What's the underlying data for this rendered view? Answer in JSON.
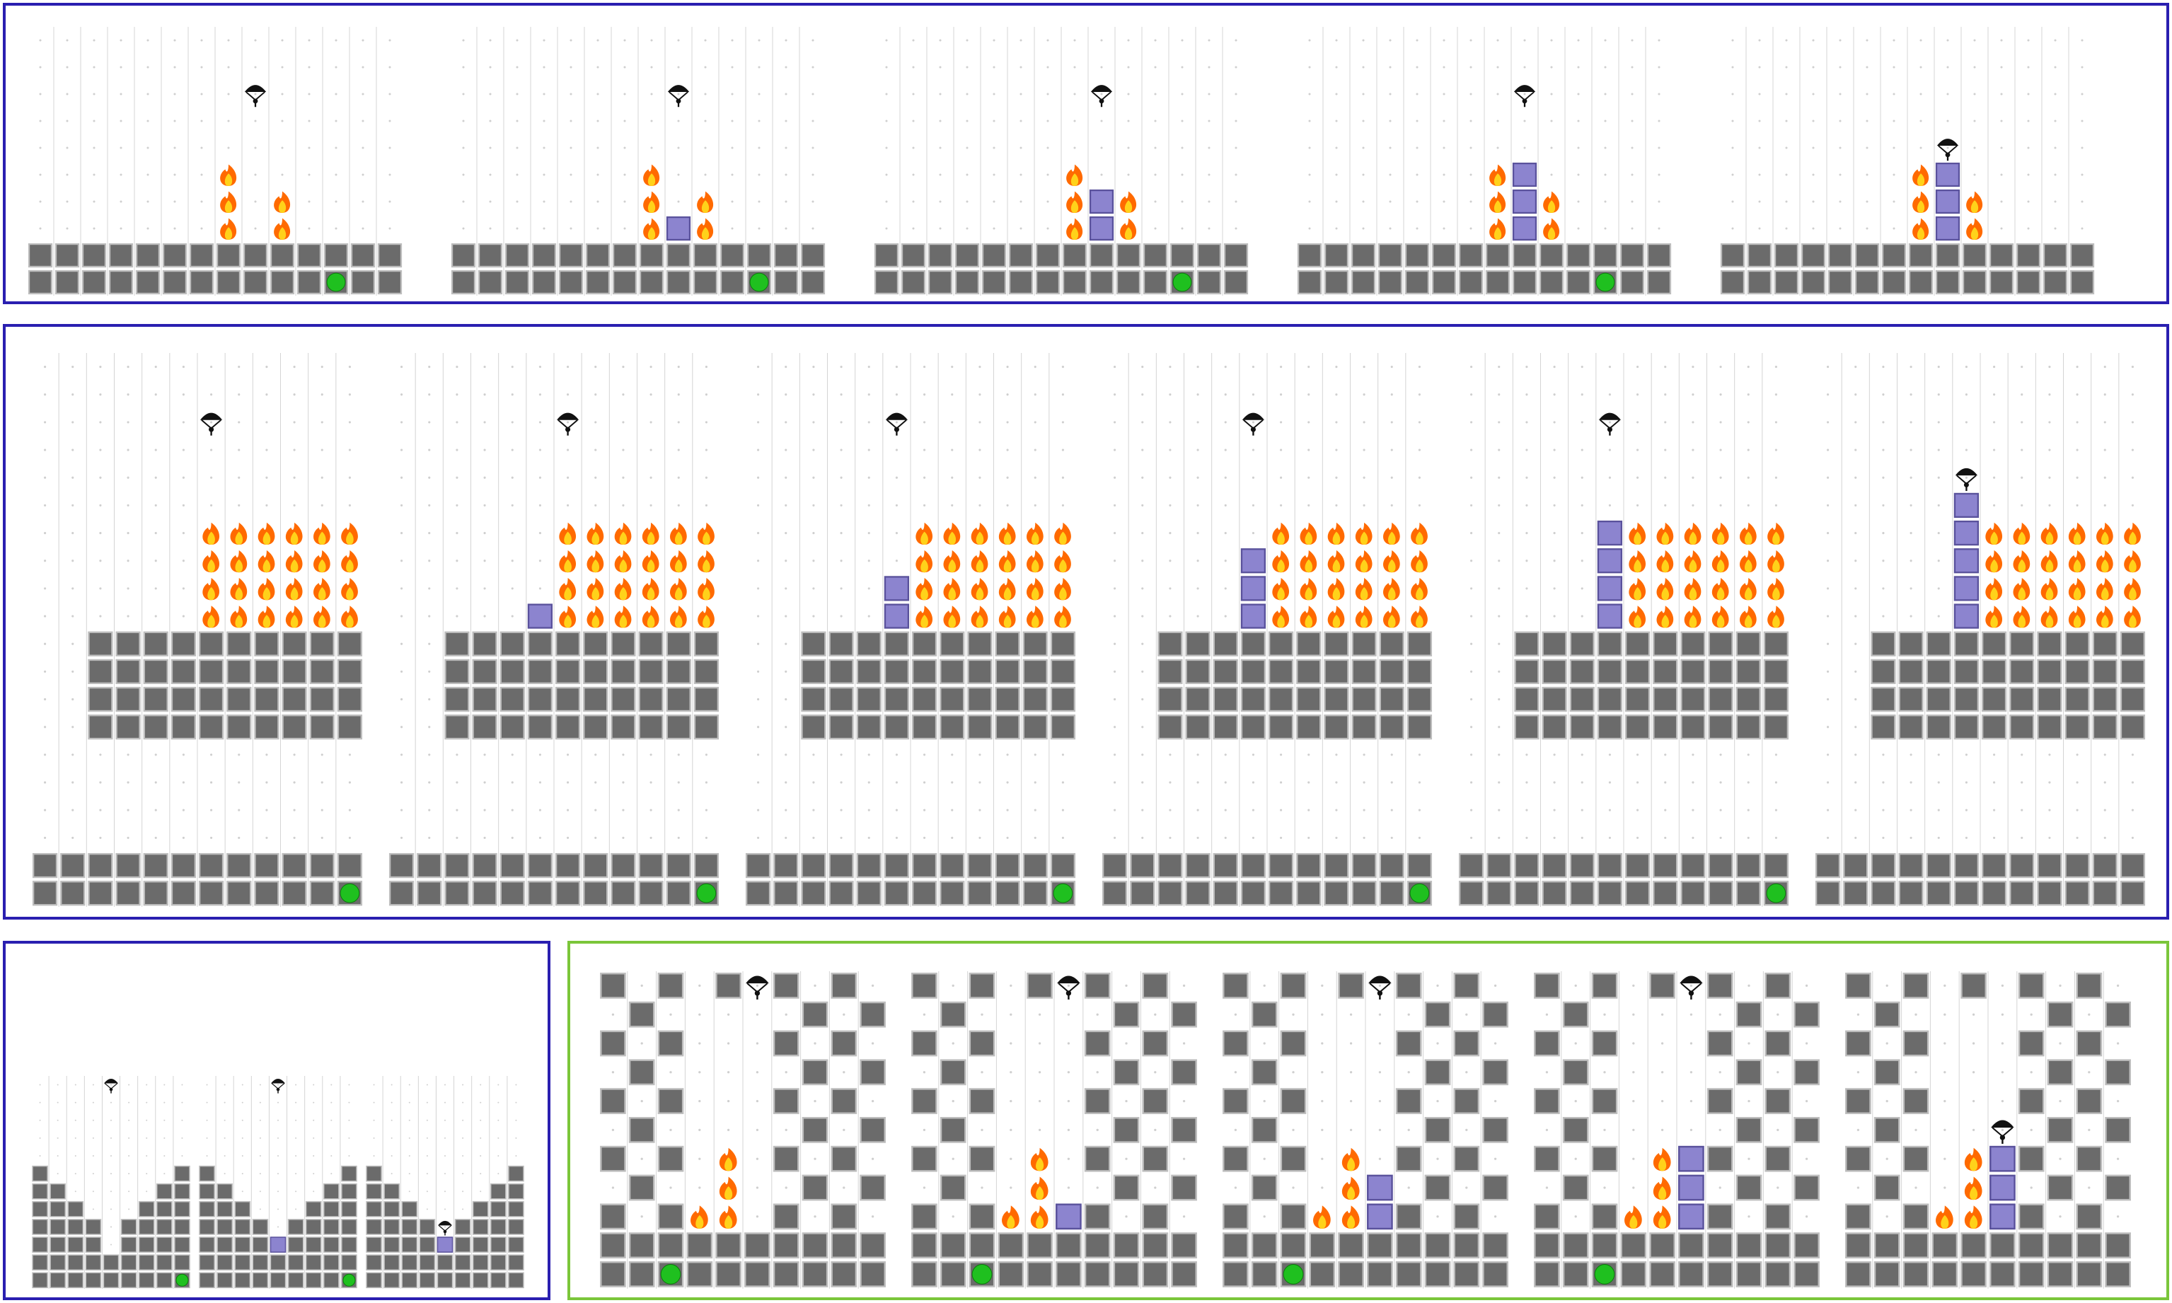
{
  "colors": {
    "group_border_blue": "#2a1fb0",
    "group_border_green": "#7bc63a",
    "wall": "#6b6b6b",
    "wall_edge": "#bdbdbd",
    "ice_block": "#8c84cf",
    "ice_edge": "#5a529c",
    "goal": "#1fc01f",
    "grid_line": "#d4d4d4",
    "grid_dot": "#cfcfcf",
    "flame_outer": "#ff6a00",
    "flame_inner": "#ffd21a",
    "agent": "#111111"
  },
  "icons": {
    "agent": "parachute-agent-icon",
    "fire": "fire-icon",
    "goal": "goal-icon",
    "ice": "ice-block-icon",
    "wall": "wall-icon"
  },
  "groups": [
    {
      "name": "episode-group-row1",
      "border": "blue",
      "panels": [
        {
          "cols": 14,
          "rows": 10,
          "walls": "floor",
          "floor_rows": 2,
          "goal": [
            11,
            9
          ],
          "agent": [
            8,
            2
          ],
          "fires": [
            [
              7,
              5
            ],
            [
              7,
              6
            ],
            [
              7,
              7
            ],
            [
              9,
              6
            ],
            [
              9,
              7
            ]
          ],
          "ice": []
        },
        {
          "cols": 14,
          "rows": 10,
          "walls": "floor",
          "floor_rows": 2,
          "goal": [
            11,
            9
          ],
          "agent": [
            8,
            2
          ],
          "fires": [
            [
              7,
              5
            ],
            [
              7,
              6
            ],
            [
              7,
              7
            ],
            [
              9,
              6
            ],
            [
              9,
              7
            ]
          ],
          "ice": [
            [
              8,
              7
            ]
          ]
        },
        {
          "cols": 14,
          "rows": 10,
          "walls": "floor",
          "floor_rows": 2,
          "goal": [
            11,
            9
          ],
          "agent": [
            8,
            2
          ],
          "fires": [
            [
              7,
              5
            ],
            [
              7,
              6
            ],
            [
              7,
              7
            ],
            [
              9,
              6
            ],
            [
              9,
              7
            ]
          ],
          "ice": [
            [
              8,
              6
            ],
            [
              8,
              7
            ]
          ]
        },
        {
          "cols": 14,
          "rows": 10,
          "walls": "floor",
          "floor_rows": 2,
          "goal": [
            11,
            9
          ],
          "agent": [
            8,
            2
          ],
          "fires": [
            [
              7,
              5
            ],
            [
              7,
              6
            ],
            [
              7,
              7
            ],
            [
              9,
              6
            ],
            [
              9,
              7
            ]
          ],
          "ice": [
            [
              8,
              5
            ],
            [
              8,
              6
            ],
            [
              8,
              7
            ]
          ]
        },
        {
          "cols": 14,
          "rows": 10,
          "walls": "floor",
          "floor_rows": 2,
          "goal": null,
          "agent": [
            8,
            4
          ],
          "fires": [
            [
              7,
              5
            ],
            [
              7,
              6
            ],
            [
              7,
              7
            ],
            [
              9,
              6
            ],
            [
              9,
              7
            ]
          ],
          "ice": [
            [
              8,
              5
            ],
            [
              8,
              6
            ],
            [
              8,
              7
            ]
          ]
        }
      ]
    },
    {
      "name": "episode-group-row2",
      "border": "blue",
      "panels": [
        {
          "cols": 12,
          "rows": 20,
          "walls": "platform",
          "goal": [
            11,
            19
          ],
          "agent": [
            6,
            2
          ],
          "fire_block": [
            6,
            6,
            11,
            9
          ],
          "ice": []
        },
        {
          "cols": 12,
          "rows": 20,
          "walls": "platform",
          "goal": [
            11,
            19
          ],
          "agent": [
            6,
            2
          ],
          "fire_block": [
            6,
            6,
            11,
            9
          ],
          "ice": [
            [
              5,
              9
            ]
          ]
        },
        {
          "cols": 12,
          "rows": 20,
          "walls": "platform",
          "goal": [
            11,
            19
          ],
          "agent": [
            5,
            2
          ],
          "fire_block": [
            6,
            6,
            11,
            9
          ],
          "ice": [
            [
              5,
              8
            ],
            [
              5,
              9
            ]
          ]
        },
        {
          "cols": 12,
          "rows": 20,
          "walls": "platform",
          "goal": [
            11,
            19
          ],
          "agent": [
            5,
            2
          ],
          "fire_block": [
            6,
            6,
            11,
            9
          ],
          "ice": [
            [
              5,
              7
            ],
            [
              5,
              8
            ],
            [
              5,
              9
            ]
          ]
        },
        {
          "cols": 12,
          "rows": 20,
          "walls": "platform",
          "goal": [
            11,
            19
          ],
          "agent": [
            5,
            2
          ],
          "fire_block": [
            6,
            6,
            11,
            9
          ],
          "ice": [
            [
              5,
              6
            ],
            [
              5,
              7
            ],
            [
              5,
              8
            ],
            [
              5,
              9
            ]
          ]
        },
        {
          "cols": 12,
          "rows": 20,
          "walls": "platform",
          "goal": null,
          "agent": [
            5,
            4
          ],
          "fire_block": [
            6,
            6,
            11,
            9
          ],
          "ice": [
            [
              5,
              5
            ],
            [
              5,
              6
            ],
            [
              5,
              7
            ],
            [
              5,
              8
            ],
            [
              5,
              9
            ]
          ]
        }
      ]
    },
    {
      "name": "episode-group-row3-left",
      "border": "blue",
      "panels": [
        {
          "cols": 9,
          "rows": 12,
          "walls": "valley",
          "goal": [
            8,
            11
          ],
          "agent": [
            4,
            0
          ],
          "ice": []
        },
        {
          "cols": 9,
          "rows": 12,
          "walls": "valley",
          "goal": [
            8,
            11
          ],
          "agent": [
            4,
            0
          ],
          "ice": [
            [
              4,
              9
            ]
          ]
        },
        {
          "cols": 9,
          "rows": 12,
          "walls": "valley",
          "goal": null,
          "agent": [
            4,
            8
          ],
          "ice": [
            [
              4,
              9
            ]
          ]
        }
      ]
    },
    {
      "name": "episode-group-row3-right",
      "border": "green",
      "panels": [
        {
          "cols": 10,
          "rows": 11,
          "walls": "checker",
          "goal": [
            2,
            10
          ],
          "agent": [
            5,
            0
          ],
          "fires": [
            [
              4,
              6
            ],
            [
              4,
              7
            ],
            [
              3,
              8
            ],
            [
              4,
              8
            ]
          ],
          "ice": []
        },
        {
          "cols": 10,
          "rows": 11,
          "walls": "checker",
          "goal": [
            2,
            10
          ],
          "agent": [
            5,
            0
          ],
          "fires": [
            [
              4,
              6
            ],
            [
              4,
              7
            ],
            [
              3,
              8
            ],
            [
              4,
              8
            ]
          ],
          "ice": [
            [
              5,
              8
            ]
          ]
        },
        {
          "cols": 10,
          "rows": 11,
          "walls": "checker",
          "goal": [
            2,
            10
          ],
          "agent": [
            5,
            0
          ],
          "fires": [
            [
              4,
              6
            ],
            [
              4,
              7
            ],
            [
              3,
              8
            ],
            [
              4,
              8
            ]
          ],
          "ice": [
            [
              5,
              7
            ],
            [
              5,
              8
            ]
          ]
        },
        {
          "cols": 10,
          "rows": 11,
          "walls": "checker",
          "goal": [
            2,
            10
          ],
          "agent": [
            5,
            0
          ],
          "fires": [
            [
              4,
              6
            ],
            [
              4,
              7
            ],
            [
              3,
              8
            ],
            [
              4,
              8
            ]
          ],
          "ice": [
            [
              5,
              6
            ],
            [
              5,
              7
            ],
            [
              5,
              8
            ]
          ]
        },
        {
          "cols": 10,
          "rows": 11,
          "walls": "checker",
          "goal": null,
          "agent": [
            5,
            5
          ],
          "fires": [
            [
              4,
              6
            ],
            [
              4,
              7
            ],
            [
              3,
              8
            ],
            [
              4,
              8
            ]
          ],
          "ice": [
            [
              5,
              6
            ],
            [
              5,
              7
            ],
            [
              5,
              8
            ]
          ]
        }
      ]
    }
  ]
}
